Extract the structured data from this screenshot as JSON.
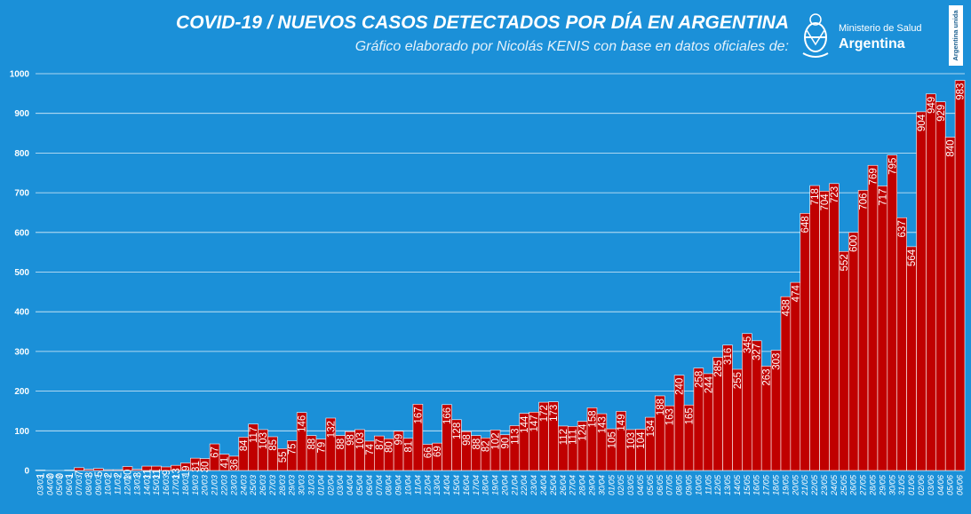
{
  "header": {
    "title": "COVID-19  /  NUEVOS CASOS DETECTADOS POR DÍA EN ARGENTINA",
    "subtitle": "Gráfico elaborado por Nicolás KENIS con base en datos oficiales de:"
  },
  "logo": {
    "line1": "Ministerio de Salud",
    "line2": "Argentina",
    "badge": "Argentina unida"
  },
  "colors": {
    "background": "#1b90d8",
    "bar": "#c00000"
  },
  "chart_data": {
    "type": "bar",
    "ylim": [
      0,
      1000
    ],
    "yticks": [
      0,
      100,
      200,
      300,
      400,
      500,
      600,
      700,
      800,
      900,
      1000
    ],
    "grid": true,
    "categories": [
      "03/03",
      "04/03",
      "05/03",
      "06/03",
      "07/03",
      "08/03",
      "09/03",
      "10/03",
      "11/03",
      "12/03",
      "13/03",
      "14/03",
      "15/03",
      "16/03",
      "17/03",
      "18/03",
      "19/03",
      "20/03",
      "21/03",
      "22/03",
      "23/03",
      "24/03",
      "25/03",
      "26/03",
      "27/03",
      "28/03",
      "29/03",
      "30/03",
      "31/03",
      "01/04",
      "02/04",
      "03/04",
      "04/04",
      "05/04",
      "06/04",
      "07/04",
      "08/04",
      "09/04",
      "10/04",
      "11/04",
      "12/04",
      "13/04",
      "14/04",
      "15/04",
      "16/04",
      "17/04",
      "18/04",
      "19/04",
      "20/04",
      "21/04",
      "22/04",
      "23/04",
      "24/04",
      "25/04",
      "26/04",
      "27/04",
      "28/04",
      "29/04",
      "30/04",
      "01/05",
      "02/05",
      "03/05",
      "04/05",
      "05/05",
      "06/05",
      "07/05",
      "08/05",
      "09/05",
      "10/05",
      "11/05",
      "12/05",
      "13/05",
      "14/05",
      "15/05",
      "16/05",
      "17/05",
      "18/05",
      "19/05",
      "20/05",
      "21/05",
      "22/05",
      "23/05",
      "24/05",
      "25/05",
      "26/05",
      "27/05",
      "28/05",
      "29/05",
      "30/05",
      "31/05",
      "01/06",
      "02/06",
      "03/06",
      "04/06",
      "05/06",
      "06/06"
    ],
    "values": [
      1,
      0,
      0,
      1,
      7,
      3,
      5,
      2,
      2,
      10,
      3,
      11,
      11,
      9,
      13,
      19,
      31,
      30,
      67,
      41,
      36,
      84,
      117,
      103,
      85,
      55,
      75,
      146,
      88,
      79,
      132,
      88,
      98,
      103,
      74,
      87,
      80,
      99,
      81,
      167,
      66,
      69,
      166,
      128,
      98,
      88,
      82,
      102,
      90,
      113,
      144,
      147,
      172,
      173,
      112,
      111,
      124,
      158,
      143,
      105,
      149,
      103,
      104,
      134,
      188,
      163,
      240,
      165,
      258,
      244,
      285,
      316,
      255,
      345,
      327,
      263,
      303,
      438,
      474,
      648,
      718,
      704,
      723,
      552,
      600,
      706,
      769,
      717,
      795,
      637,
      564,
      904,
      949,
      929,
      840,
      983
    ]
  }
}
